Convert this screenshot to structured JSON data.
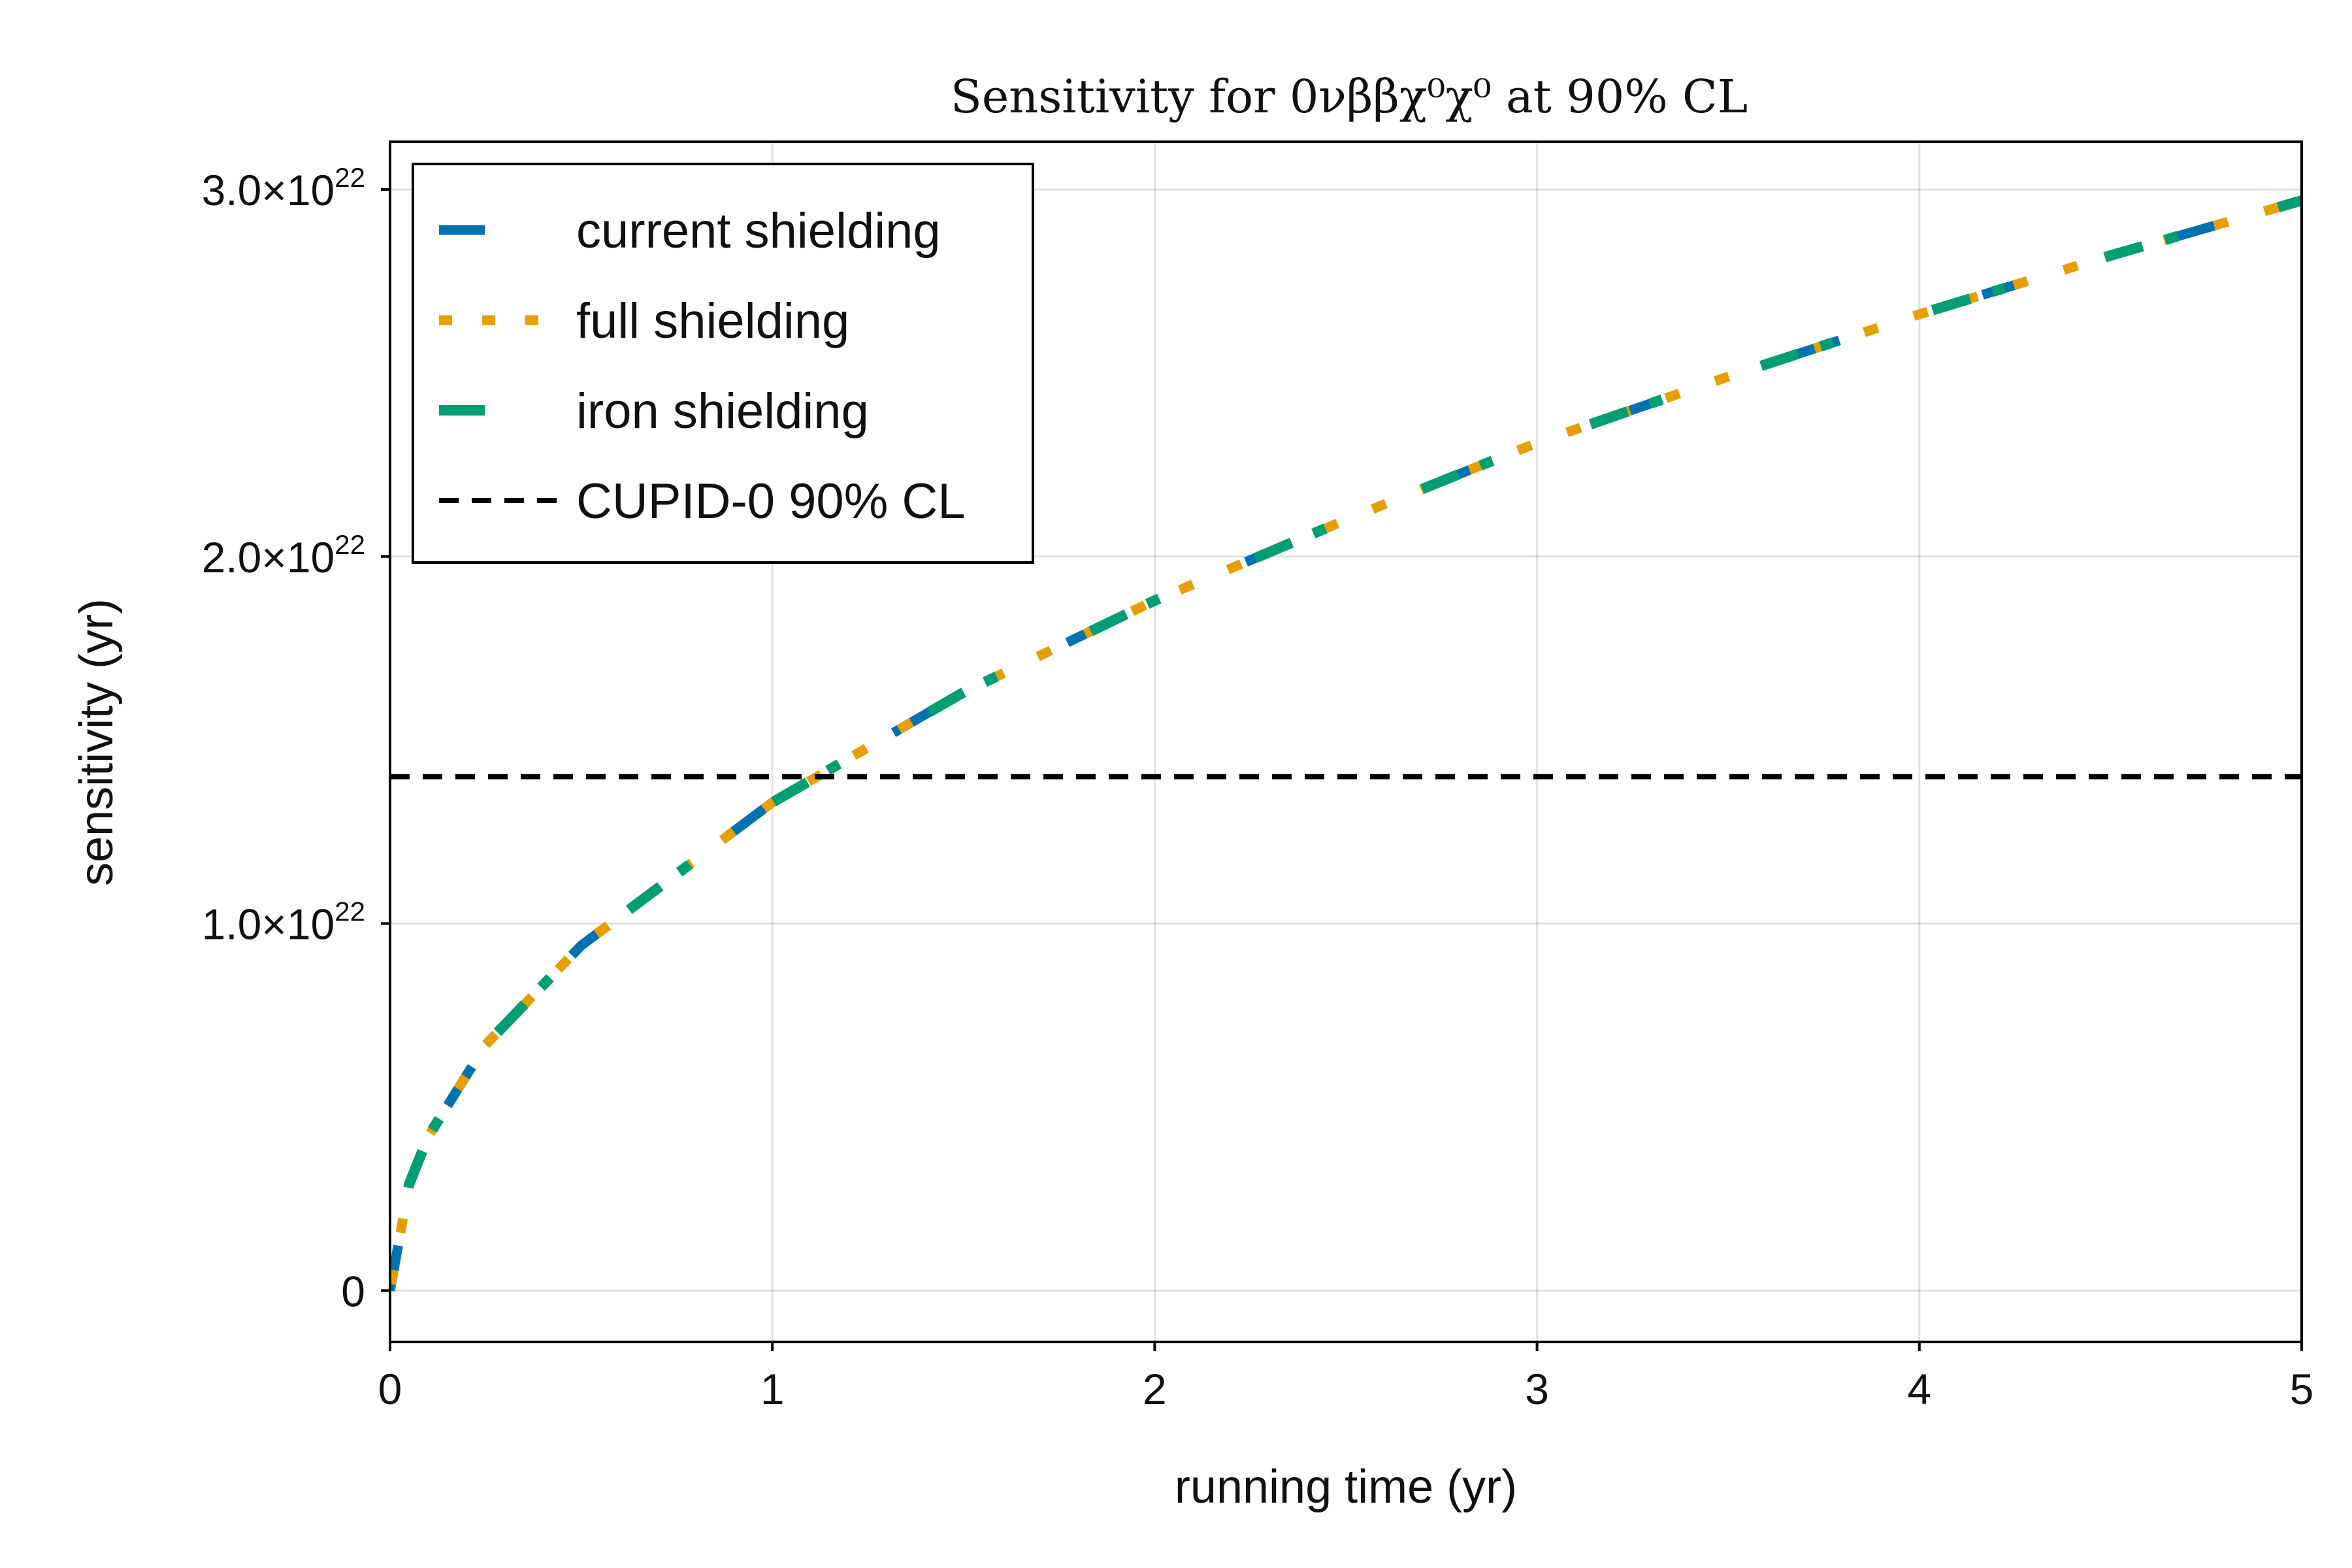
{
  "chart_data": {
    "type": "line",
    "title": "Sensitivity for 0νββχ⁰χ⁰ at 90% CL",
    "xlabel": "running time (yr)",
    "ylabel": "sensitivity (yr)",
    "xlim": [
      0,
      5
    ],
    "ylim": [
      -1.4e+21,
      3.13e+22
    ],
    "x_ticks": [
      {
        "value": 0,
        "label": "0"
      },
      {
        "value": 1,
        "label": "1"
      },
      {
        "value": 2,
        "label": "2"
      },
      {
        "value": 3,
        "label": "3"
      },
      {
        "value": 4,
        "label": "4"
      },
      {
        "value": 5,
        "label": "5"
      }
    ],
    "y_ticks": [
      {
        "value": 0,
        "label": "0",
        "exp": ""
      },
      {
        "value": 1e+22,
        "label": "1.0×10",
        "exp": "22"
      },
      {
        "value": 2e+22,
        "label": "2.0×10",
        "exp": "22"
      },
      {
        "value": 3e+22,
        "label": "3.0×10",
        "exp": "22"
      }
    ],
    "grid": true,
    "legend_position": "top-left",
    "series": [
      {
        "name": "current shielding",
        "color": "#0072b2",
        "style": "dash",
        "x": [
          0,
          0.05,
          0.1,
          0.25,
          0.5,
          1,
          1.5,
          2,
          2.5,
          3,
          3.5,
          4,
          4.5,
          5
        ],
        "y": [
          0,
          2.9e+21,
          4.2e+21,
          6.7e+21,
          9.4e+21,
          1.33e+22,
          1.63e+22,
          1.88e+22,
          2.1e+22,
          2.31e+22,
          2.49e+22,
          2.66e+22,
          2.82e+22,
          2.97e+22
        ]
      },
      {
        "name": "full shielding",
        "color": "#e69f00",
        "style": "dot",
        "x": [
          0,
          0.05,
          0.1,
          0.25,
          0.5,
          1,
          1.5,
          2,
          2.5,
          3,
          3.5,
          4,
          4.5,
          5
        ],
        "y": [
          0,
          2.9e+21,
          4.2e+21,
          6.7e+21,
          9.4e+21,
          1.33e+22,
          1.63e+22,
          1.88e+22,
          2.1e+22,
          2.31e+22,
          2.49e+22,
          2.66e+22,
          2.82e+22,
          2.97e+22
        ]
      },
      {
        "name": "iron shielding",
        "color": "#009e73",
        "style": "dashdot",
        "x": [
          0,
          0.05,
          0.1,
          0.25,
          0.5,
          1,
          1.5,
          2,
          2.5,
          3,
          3.5,
          4,
          4.5,
          5
        ],
        "y": [
          0,
          2.9e+21,
          4.2e+21,
          6.7e+21,
          9.4e+21,
          1.33e+22,
          1.63e+22,
          1.88e+22,
          2.1e+22,
          2.31e+22,
          2.49e+22,
          2.66e+22,
          2.82e+22,
          2.97e+22
        ]
      },
      {
        "name": "CUPID-0 90% CL",
        "color": "#000000",
        "style": "hline",
        "value": 1.4e+22
      }
    ]
  }
}
